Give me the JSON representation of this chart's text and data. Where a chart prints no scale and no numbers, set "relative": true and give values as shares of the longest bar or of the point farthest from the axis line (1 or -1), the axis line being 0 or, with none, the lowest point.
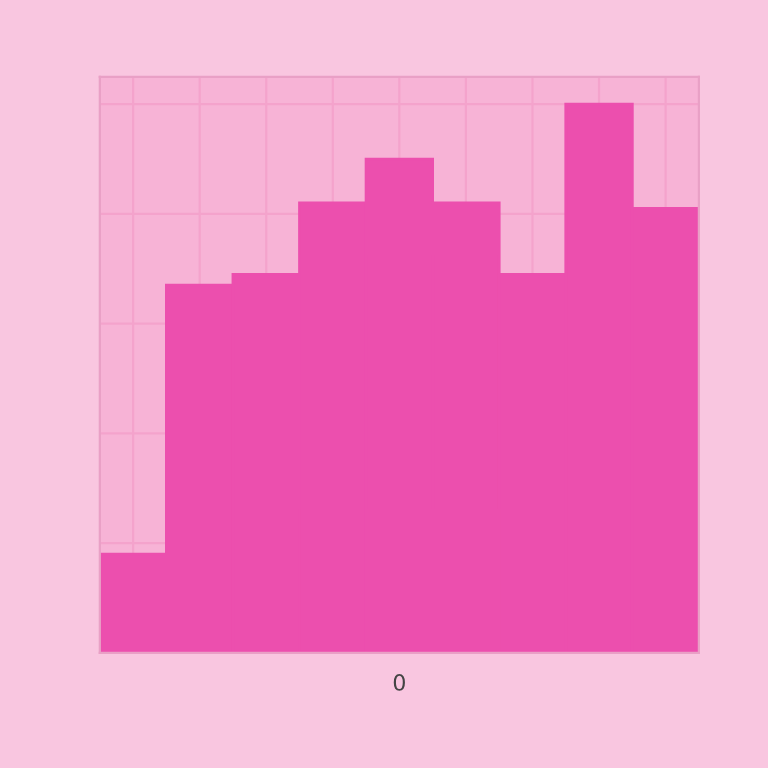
{
  "chart_data": {
    "type": "bar",
    "relative": true,
    "xlabel": "0",
    "categories": [
      null,
      null,
      null,
      null,
      null,
      null,
      null,
      null,
      null
    ],
    "values": [
      0.18,
      0.67,
      0.69,
      0.82,
      0.9,
      0.82,
      0.69,
      1,
      0.81
    ],
    "color": "#ec4fae",
    "grid": true
  }
}
